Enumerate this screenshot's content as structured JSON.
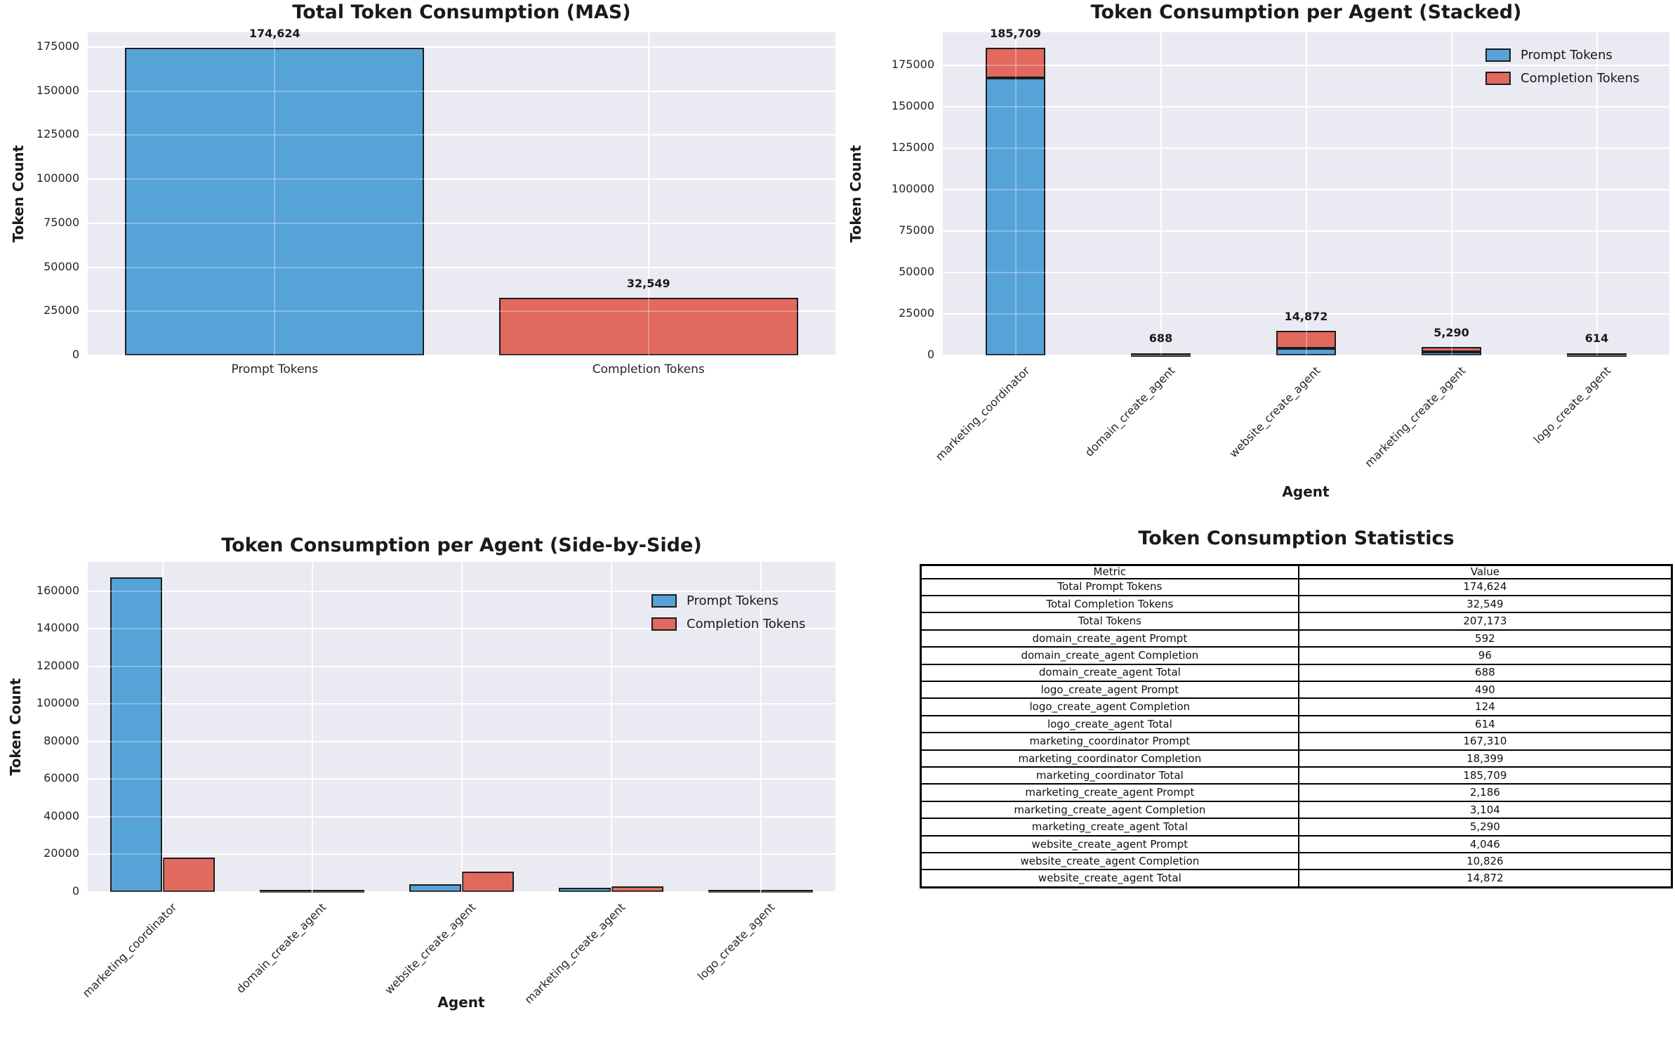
{
  "style": {
    "plot_bg": "#EAEAF2",
    "grid_color": "#FFFFFF",
    "bar_edge": "#1C1C1C",
    "text_color": "#262626",
    "prompt_color": "#56A3D8",
    "completion_color": "#E2695E"
  },
  "chart_data": [
    {
      "id": "total",
      "type": "bar",
      "title": "Total Token Consumption (MAS)",
      "ylabel": "Token Count",
      "xlabel": "",
      "categories": [
        "Prompt Tokens",
        "Completion Tokens"
      ],
      "values": [
        174624,
        32549
      ],
      "bar_labels": [
        "174,624",
        "32,549"
      ],
      "bar_colors": [
        "#56A3D8",
        "#E2695E"
      ],
      "yticks": [
        0,
        25000,
        50000,
        75000,
        100000,
        125000,
        150000,
        175000
      ],
      "ylim": [
        0,
        183355
      ],
      "bar_width_frac": 0.8,
      "rotate_xticks": false,
      "grid": true,
      "legend": false
    },
    {
      "id": "stacked",
      "type": "bar",
      "stacked": true,
      "title": "Token Consumption per Agent (Stacked)",
      "ylabel": "Token Count",
      "xlabel": "Agent",
      "categories": [
        "marketing_coordinator",
        "domain_create_agent",
        "website_create_agent",
        "marketing_create_agent",
        "logo_create_agent"
      ],
      "series": [
        {
          "name": "Prompt Tokens",
          "color": "#56A3D8",
          "values": [
            167310,
            592,
            4046,
            2186,
            490
          ]
        },
        {
          "name": "Completion Tokens",
          "color": "#E2695E",
          "values": [
            18399,
            96,
            10826,
            3104,
            124
          ]
        }
      ],
      "totals": [
        185709,
        688,
        14872,
        5290,
        614
      ],
      "bar_labels": [
        "185,709",
        "688",
        "14,872",
        "5,290",
        "614"
      ],
      "yticks": [
        0,
        25000,
        50000,
        75000,
        100000,
        125000,
        150000,
        175000
      ],
      "ylim": [
        0,
        194994
      ],
      "bar_width_frac": 0.41,
      "rotate_xticks": true,
      "grid": true,
      "legend": true,
      "legend_position": "upper right"
    },
    {
      "id": "side",
      "type": "bar",
      "grouped": true,
      "title": "Token Consumption per Agent (Side-by-Side)",
      "ylabel": "Token Count",
      "xlabel": "Agent",
      "categories": [
        "marketing_coordinator",
        "domain_create_agent",
        "website_create_agent",
        "marketing_create_agent",
        "logo_create_agent"
      ],
      "series": [
        {
          "name": "Prompt Tokens",
          "color": "#56A3D8",
          "values": [
            167310,
            592,
            4046,
            2186,
            490
          ]
        },
        {
          "name": "Completion Tokens",
          "color": "#E2695E",
          "values": [
            18399,
            96,
            10826,
            3104,
            124
          ]
        }
      ],
      "yticks": [
        0,
        20000,
        40000,
        60000,
        80000,
        100000,
        120000,
        140000,
        160000
      ],
      "ylim": [
        0,
        175676
      ],
      "bar_width_frac": 0.35,
      "rotate_xticks": true,
      "grid": true,
      "legend": true,
      "legend_position": "upper right"
    },
    {
      "id": "stats",
      "type": "table",
      "title": "Token Consumption Statistics",
      "columns": [
        "Metric",
        "Value"
      ],
      "rows": [
        [
          "Total Prompt Tokens",
          "174,624"
        ],
        [
          "Total Completion Tokens",
          "32,549"
        ],
        [
          "Total Tokens",
          "207,173"
        ],
        [
          "domain_create_agent Prompt",
          "592"
        ],
        [
          "domain_create_agent Completion",
          "96"
        ],
        [
          "domain_create_agent Total",
          "688"
        ],
        [
          "logo_create_agent Prompt",
          "490"
        ],
        [
          "logo_create_agent Completion",
          "124"
        ],
        [
          "logo_create_agent Total",
          "614"
        ],
        [
          "marketing_coordinator Prompt",
          "167,310"
        ],
        [
          "marketing_coordinator Completion",
          "18,399"
        ],
        [
          "marketing_coordinator Total",
          "185,709"
        ],
        [
          "marketing_create_agent Prompt",
          "2,186"
        ],
        [
          "marketing_create_agent Completion",
          "3,104"
        ],
        [
          "marketing_create_agent Total",
          "5,290"
        ],
        [
          "website_create_agent Prompt",
          "4,046"
        ],
        [
          "website_create_agent Completion",
          "10,826"
        ],
        [
          "website_create_agent Total",
          "14,872"
        ]
      ]
    }
  ]
}
